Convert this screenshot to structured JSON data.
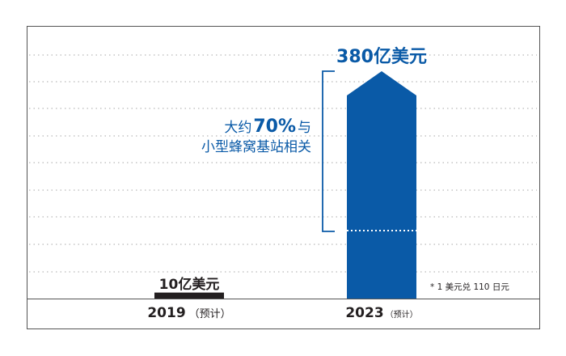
{
  "chart_data": {
    "type": "bar",
    "categories": [
      "2019",
      "2023"
    ],
    "category_suffix": [
      "（预计）",
      "（预计）"
    ],
    "values": [
      1,
      38
    ],
    "value_labels": [
      "10亿美元",
      "380亿美元"
    ],
    "bar_colors": [
      "#231f20",
      "#0a5aa7"
    ],
    "annotation": {
      "text_prefix": "大约",
      "highlight": "70%",
      "text_suffix": "与",
      "line2": "小型蜂窝基站相关",
      "share": 0.7
    },
    "footnote": "* 1 美元兑 110 日元",
    "grid": true,
    "ylim": [
      0,
      38
    ]
  }
}
